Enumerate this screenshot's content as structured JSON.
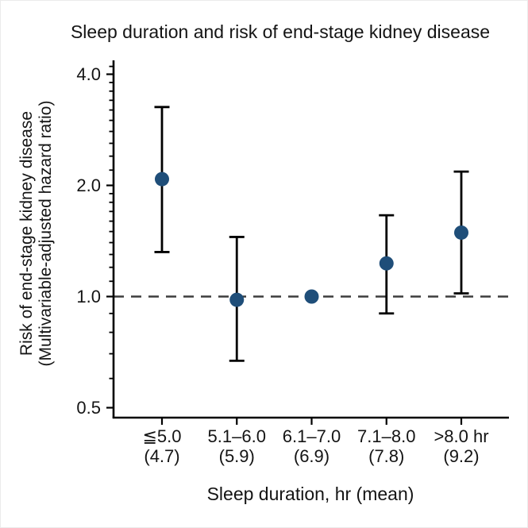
{
  "colors": {
    "point": "#1f4e79",
    "error_bar": "#000000",
    "axis": "#000000",
    "reference_line": "#3d3d3d",
    "text": "#141414",
    "background": "#ffffff"
  },
  "chart_data": {
    "type": "scatter",
    "title": "Sleep duration and risk of end-stage kidney disease",
    "xlabel": "Sleep duration, hr (mean)",
    "ylabel_line1": "Risk of end-stage kidney disease",
    "ylabel_line2": "(Multivariable-adjusted hazard ratio)",
    "y_scale": "log",
    "grid": false,
    "legend": false,
    "ylim": [
      0.47,
      4.4
    ],
    "reference_line": 1.0,
    "y_ticks": [
      4.0,
      2.0,
      1.0,
      0.5
    ],
    "y_tick_labels": [
      "4.0",
      "2.0",
      "1.0",
      "0.5"
    ],
    "y_minor_ticks": [
      4.2,
      3.8,
      3.6,
      3.4,
      3.2,
      3.0,
      2.8,
      2.6,
      2.4,
      2.2,
      1.9,
      1.8,
      1.7,
      1.6,
      1.5,
      1.4,
      1.3,
      1.2,
      1.1,
      0.9,
      0.8,
      0.7,
      0.6
    ],
    "categories": [
      {
        "range": "≦5.0",
        "mean": "(4.7)"
      },
      {
        "range": "5.1–6.0",
        "mean": "(5.9)"
      },
      {
        "range": "6.1–7.0",
        "mean": "(6.9)"
      },
      {
        "range": "7.1–8.0",
        "mean": "(7.8)"
      },
      {
        "range": ">8.0 hr",
        "mean": "(9.2)"
      }
    ],
    "series": [
      {
        "name": "Multivariable-adjusted hazard ratio",
        "points": [
          {
            "hr": 2.08,
            "ci_low": 1.32,
            "ci_high": 3.26,
            "reference": false
          },
          {
            "hr": 0.98,
            "ci_low": 0.67,
            "ci_high": 1.45,
            "reference": false
          },
          {
            "hr": 1.0,
            "ci_low": null,
            "ci_high": null,
            "reference": true
          },
          {
            "hr": 1.23,
            "ci_low": 0.9,
            "ci_high": 1.66,
            "reference": false
          },
          {
            "hr": 1.49,
            "ci_low": 1.02,
            "ci_high": 2.18,
            "reference": false
          }
        ]
      }
    ]
  }
}
